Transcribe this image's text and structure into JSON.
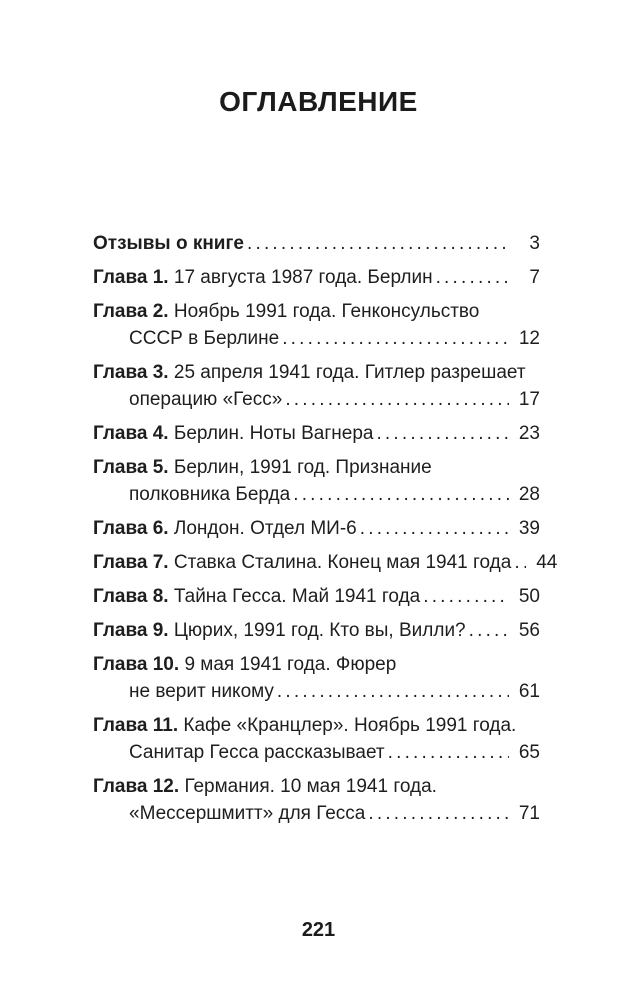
{
  "toc": {
    "title": "ОГЛАВЛЕНИЕ",
    "entries": [
      {
        "label": "Отзывы о книге",
        "text": "",
        "page": "3"
      },
      {
        "label": "Глава 1.",
        "text": "17 августа 1987 года. Берлин",
        "page": "7"
      },
      {
        "label": "Глава 2.",
        "text": "Ноябрь 1991 года. Генконсульство",
        "text2": "СССР в Берлине",
        "page": "12"
      },
      {
        "label": "Глава 3.",
        "text": "25 апреля 1941 года. Гитлер разрешает",
        "text2": "операцию «Гесс»",
        "page": "17"
      },
      {
        "label": "Глава 4.",
        "text": "Берлин. Ноты Вагнера",
        "page": "23"
      },
      {
        "label": "Глава 5.",
        "text": "Берлин, 1991 год. Признание",
        "text2": "полковника Берда",
        "page": "28"
      },
      {
        "label": "Глава 6.",
        "text": "Лондон. Отдел МИ-6",
        "page": "39"
      },
      {
        "label": "Глава 7.",
        "text": "Ставка Сталина. Конец мая 1941 года",
        "page": "44"
      },
      {
        "label": "Глава 8.",
        "text": "Тайна Гесса. Май 1941 года",
        "page": "50"
      },
      {
        "label": "Глава 9.",
        "text": "Цюрих, 1991 год. Кто вы, Вилли?",
        "page": "56"
      },
      {
        "label": "Глава 10.",
        "text": "9 мая 1941 года. Фюрер",
        "text2": "не верит никому",
        "page": "61"
      },
      {
        "label": "Глава 11.",
        "text": "Кафе «Кранцлер». Ноябрь 1991 года.",
        "text2": "Санитар Гесса рассказывает",
        "page": "65"
      },
      {
        "label": "Глава 12.",
        "text": "Германия. 10 мая 1941 года.",
        "text2": "«Мессершмитт» для Гесса",
        "page": "71"
      }
    ]
  },
  "footer": {
    "page_number": "221"
  }
}
